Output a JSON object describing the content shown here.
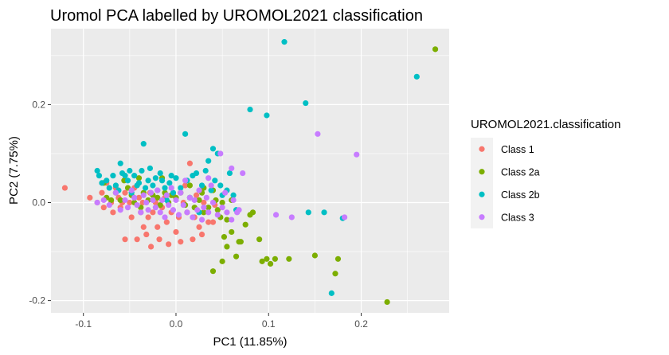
{
  "chart_data": {
    "type": "scatter",
    "title": "Uromol PCA labelled by UROMOL2021 classification",
    "xlabel": "PC1 (11.85%)",
    "ylabel": "PC2 (7.75%)",
    "xlim": [
      -0.135,
      0.295
    ],
    "ylim": [
      -0.225,
      0.355
    ],
    "x_ticks": [
      -0.1,
      0.0,
      0.1,
      0.2
    ],
    "x_tick_labels": [
      "-0.1",
      "0.0",
      "0.1",
      "0.2"
    ],
    "y_ticks": [
      -0.2,
      0.0,
      0.2
    ],
    "y_tick_labels": [
      "-0.2",
      "0.0",
      "0.2"
    ],
    "grid": true,
    "legend_position": "right",
    "legend_title": "UROMOL2021.classification",
    "series": [
      {
        "name": "Class 1",
        "color": "#F8766D",
        "points": [
          [
            -0.12,
            0.03
          ],
          [
            -0.093,
            0.01
          ],
          [
            -0.085,
            0.0
          ],
          [
            -0.08,
            0.02
          ],
          [
            -0.078,
            -0.01
          ],
          [
            -0.075,
            0.04
          ],
          [
            -0.07,
            0.0
          ],
          [
            -0.068,
            -0.02
          ],
          [
            -0.065,
            0.03
          ],
          [
            -0.062,
            0.01
          ],
          [
            -0.06,
            -0.01
          ],
          [
            -0.058,
            0.0
          ],
          [
            -0.055,
            0.02
          ],
          [
            -0.055,
            -0.075
          ],
          [
            -0.05,
            0.0
          ],
          [
            -0.048,
            -0.03
          ],
          [
            -0.045,
            0.03
          ],
          [
            -0.042,
            -0.075
          ],
          [
            -0.04,
            0.01
          ],
          [
            -0.038,
            -0.02
          ],
          [
            -0.036,
            0.0
          ],
          [
            -0.035,
            -0.05
          ],
          [
            -0.032,
            -0.065
          ],
          [
            -0.03,
            -0.03
          ],
          [
            -0.028,
            0.02
          ],
          [
            -0.027,
            -0.09
          ],
          [
            -0.025,
            -0.02
          ],
          [
            -0.022,
            0.0
          ],
          [
            -0.02,
            -0.05
          ],
          [
            -0.018,
            -0.075
          ],
          [
            -0.015,
            -0.01
          ],
          [
            -0.012,
            0.01
          ],
          [
            -0.01,
            -0.04
          ],
          [
            -0.008,
            -0.085
          ],
          [
            -0.005,
            -0.02
          ],
          [
            -0.003,
            0.015
          ],
          [
            0.0,
            -0.06
          ],
          [
            0.003,
            -0.03
          ],
          [
            0.005,
            -0.08
          ],
          [
            0.008,
            0.0
          ],
          [
            0.01,
            0.035
          ],
          [
            0.012,
            -0.02
          ],
          [
            0.015,
            0.08
          ],
          [
            0.018,
            -0.075
          ],
          [
            0.02,
            -0.03
          ],
          [
            0.022,
            0.015
          ],
          [
            0.025,
            -0.05
          ],
          [
            0.028,
            -0.065
          ],
          [
            0.03,
            0.0
          ],
          [
            0.035,
            -0.04
          ],
          [
            0.04,
            -0.04
          ],
          [
            0.042,
            -0.005
          ]
        ]
      },
      {
        "name": "Class 2a",
        "color": "#7CAE00",
        "points": [
          [
            -0.078,
            0.04
          ],
          [
            -0.075,
            0.01
          ],
          [
            -0.07,
            0.005
          ],
          [
            -0.065,
            0.02
          ],
          [
            -0.06,
            0.005
          ],
          [
            -0.056,
            0.045
          ],
          [
            -0.052,
            0.03
          ],
          [
            -0.048,
            0.015
          ],
          [
            -0.045,
            0.0
          ],
          [
            -0.04,
            0.05
          ],
          [
            -0.038,
            -0.01
          ],
          [
            -0.035,
            0.02
          ],
          [
            -0.03,
            0.005
          ],
          [
            -0.025,
            0.015
          ],
          [
            -0.02,
            0.01
          ],
          [
            -0.017,
            -0.005
          ],
          [
            -0.015,
            0.05
          ],
          [
            -0.012,
            0.02
          ],
          [
            -0.008,
            0.0
          ],
          [
            -0.005,
            0.015
          ],
          [
            0.0,
            0.01
          ],
          [
            0.005,
            0.02
          ],
          [
            0.01,
            -0.005
          ],
          [
            0.015,
            0.01
          ],
          [
            0.02,
            -0.01
          ],
          [
            0.025,
            0.005
          ],
          [
            0.03,
            -0.02
          ],
          [
            0.035,
            -0.01
          ],
          [
            0.04,
            0.025
          ],
          [
            0.043,
            0.005
          ],
          [
            0.045,
            -0.015
          ],
          [
            0.048,
            -0.03
          ],
          [
            0.05,
            0.0
          ],
          [
            0.052,
            -0.07
          ],
          [
            0.055,
            -0.09
          ],
          [
            0.06,
            -0.06
          ],
          [
            0.065,
            -0.11
          ],
          [
            0.068,
            -0.08
          ],
          [
            0.04,
            -0.14
          ],
          [
            0.05,
            -0.12
          ],
          [
            0.07,
            -0.08
          ],
          [
            0.075,
            -0.045
          ],
          [
            0.08,
            -0.025
          ],
          [
            0.083,
            -0.02
          ],
          [
            0.09,
            -0.075
          ],
          [
            0.093,
            -0.12
          ],
          [
            0.098,
            -0.115
          ],
          [
            0.102,
            -0.125
          ],
          [
            0.107,
            -0.115
          ],
          [
            0.122,
            -0.115
          ],
          [
            0.15,
            -0.108
          ],
          [
            0.175,
            -0.115
          ],
          [
            0.172,
            -0.145
          ],
          [
            0.228,
            -0.203
          ],
          [
            0.28,
            0.313
          ],
          [
            0.03,
            0.03
          ],
          [
            0.028,
            0.02
          ],
          [
            0.055,
            -0.035
          ],
          [
            0.06,
            0.005
          ],
          [
            0.015,
            0.035
          ]
        ]
      },
      {
        "name": "Class 2b",
        "color": "#00BFC4",
        "points": [
          [
            -0.085,
            0.065
          ],
          [
            -0.083,
            0.055
          ],
          [
            -0.08,
            0.04
          ],
          [
            -0.075,
            0.045
          ],
          [
            -0.072,
            0.03
          ],
          [
            -0.068,
            0.055
          ],
          [
            -0.065,
            0.035
          ],
          [
            -0.062,
            0.025
          ],
          [
            -0.06,
            0.08
          ],
          [
            -0.058,
            0.06
          ],
          [
            -0.055,
            0.055
          ],
          [
            -0.052,
            0.045
          ],
          [
            -0.05,
            0.065
          ],
          [
            -0.048,
            0.02
          ],
          [
            -0.045,
            0.055
          ],
          [
            -0.042,
            0.035
          ],
          [
            -0.04,
            0.04
          ],
          [
            -0.037,
            0.065
          ],
          [
            -0.035,
            0.12
          ],
          [
            -0.033,
            0.03
          ],
          [
            -0.03,
            0.045
          ],
          [
            -0.028,
            0.07
          ],
          [
            -0.025,
            0.035
          ],
          [
            -0.022,
            0.05
          ],
          [
            -0.02,
            0.025
          ],
          [
            -0.017,
            0.06
          ],
          [
            -0.015,
            0.045
          ],
          [
            -0.012,
            0.03
          ],
          [
            -0.01,
            0.005
          ],
          [
            -0.007,
            0.04
          ],
          [
            -0.005,
            0.055
          ],
          [
            -0.003,
            0.02
          ],
          [
            0.0,
            0.05
          ],
          [
            0.005,
            0.03
          ],
          [
            0.01,
            0.14
          ],
          [
            0.012,
            0.045
          ],
          [
            0.015,
            0.01
          ],
          [
            0.018,
            0.055
          ],
          [
            0.022,
            0.06
          ],
          [
            0.025,
            -0.02
          ],
          [
            0.028,
            0.035
          ],
          [
            0.032,
            0.065
          ],
          [
            0.035,
            0.085
          ],
          [
            0.038,
            0.025
          ],
          [
            0.04,
            0.11
          ],
          [
            0.042,
            0.045
          ],
          [
            0.045,
            0.1
          ],
          [
            0.048,
            0.035
          ],
          [
            0.05,
            0.015
          ],
          [
            0.055,
            0.025
          ],
          [
            0.058,
            0.06
          ],
          [
            0.062,
            0.015
          ],
          [
            0.065,
            -0.015
          ],
          [
            0.08,
            0.19
          ],
          [
            0.098,
            0.178
          ],
          [
            0.117,
            0.328
          ],
          [
            0.14,
            0.203
          ],
          [
            0.143,
            -0.02
          ],
          [
            0.16,
            -0.02
          ],
          [
            0.18,
            -0.032
          ],
          [
            0.26,
            0.257
          ],
          [
            0.168,
            -0.185
          ]
        ]
      },
      {
        "name": "Class 3",
        "color": "#C77CFF",
        "points": [
          [
            -0.085,
            0.0
          ],
          [
            -0.078,
            0.005
          ],
          [
            -0.072,
            -0.005
          ],
          [
            -0.065,
            0.02
          ],
          [
            -0.06,
            -0.015
          ],
          [
            -0.055,
            0.005
          ],
          [
            -0.052,
            -0.01
          ],
          [
            -0.048,
            0.025
          ],
          [
            -0.045,
            0.01
          ],
          [
            -0.042,
            -0.005
          ],
          [
            -0.038,
            -0.02
          ],
          [
            -0.035,
            0.015
          ],
          [
            -0.032,
            0.0
          ],
          [
            -0.03,
            -0.015
          ],
          [
            -0.027,
            0.02
          ],
          [
            -0.025,
            0.005
          ],
          [
            -0.022,
            -0.01
          ],
          [
            -0.02,
            0.025
          ],
          [
            -0.017,
            -0.02
          ],
          [
            -0.015,
            0.005
          ],
          [
            -0.012,
            -0.03
          ],
          [
            -0.01,
            0.015
          ],
          [
            -0.008,
            -0.005
          ],
          [
            -0.005,
            0.03
          ],
          [
            -0.003,
            -0.015
          ],
          [
            0.0,
            0.005
          ],
          [
            0.003,
            -0.025
          ],
          [
            0.005,
            0.02
          ],
          [
            0.008,
            -0.005
          ],
          [
            0.01,
            0.045
          ],
          [
            0.012,
            -0.02
          ],
          [
            0.015,
            0.01
          ],
          [
            0.018,
            -0.03
          ],
          [
            0.02,
            0.005
          ],
          [
            0.023,
            -0.015
          ],
          [
            0.025,
            0.025
          ],
          [
            0.028,
            -0.035
          ],
          [
            0.03,
            -0.01
          ],
          [
            0.033,
            0.01
          ],
          [
            0.035,
            -0.02
          ],
          [
            0.038,
            0.035
          ],
          [
            0.04,
            0.0
          ],
          [
            0.045,
            -0.025
          ],
          [
            0.048,
            0.1
          ],
          [
            0.05,
            -0.01
          ],
          [
            0.053,
            0.02
          ],
          [
            0.055,
            -0.02
          ],
          [
            0.06,
            -0.035
          ],
          [
            0.062,
            0.005
          ],
          [
            0.066,
            -0.02
          ],
          [
            0.068,
            -0.015
          ],
          [
            0.072,
            0.06
          ],
          [
            0.108,
            -0.025
          ],
          [
            0.125,
            -0.03
          ],
          [
            0.153,
            0.14
          ],
          [
            0.182,
            -0.03
          ],
          [
            0.195,
            0.098
          ],
          [
            0.06,
            0.07
          ],
          [
            0.035,
            0.05
          ]
        ]
      }
    ]
  }
}
